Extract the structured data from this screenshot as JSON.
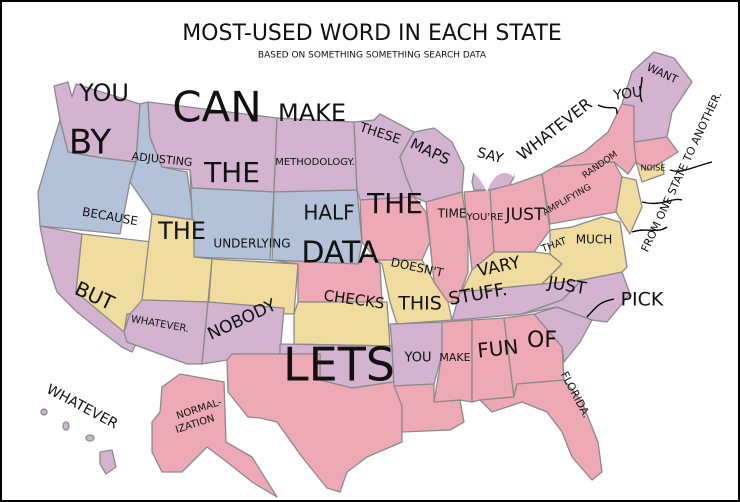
{
  "title": "MOST-USED WORD IN EACH STATE",
  "subtitle": "BASED ON SOMETHING SOMETHING SEARCH DATA",
  "colors": {
    "purple": "#d4b3d1",
    "blue": "#b3c1d9",
    "yellow": "#f1dca0",
    "pink": "#eea9b6",
    "border": "#8a8a8a"
  },
  "words": [
    {
      "state": "Washington",
      "word": "YOU"
    },
    {
      "state": "Oregon",
      "word": "BY"
    },
    {
      "state": "Idaho",
      "word": "ADJUSTING"
    },
    {
      "state": "Montana",
      "word": "CAN"
    },
    {
      "state": "Wyoming",
      "word": "THE"
    },
    {
      "state": "North Dakota",
      "word": "MAKE"
    },
    {
      "state": "South Dakota",
      "word": "METHODOLOGY."
    },
    {
      "state": "Minnesota",
      "word": "THESE"
    },
    {
      "state": "Wisconsin",
      "word": "MAPS"
    },
    {
      "state": "Michigan",
      "word": "SAY"
    },
    {
      "state": "Nevada",
      "word": "BECAUSE"
    },
    {
      "state": "Utah",
      "word": "THE"
    },
    {
      "state": "Colorado",
      "word": "UNDERLYING"
    },
    {
      "state": "Nebraska",
      "word": "HALF"
    },
    {
      "state": "Iowa",
      "word": "THE"
    },
    {
      "state": "Illinois",
      "word": "TIME"
    },
    {
      "state": "Indiana",
      "word": "YOU'RE"
    },
    {
      "state": "Ohio",
      "word": "JUST"
    },
    {
      "state": "Pennsylvania",
      "word": "AMPLIFYING"
    },
    {
      "state": "New York",
      "word": "RANDOM"
    },
    {
      "state": "Massachusetts",
      "word": "NOISE"
    },
    {
      "state": "Kansas",
      "word": "DATA"
    },
    {
      "state": "Missouri",
      "word": "DOESN'T"
    },
    {
      "state": "Kentucky",
      "word": "VARY"
    },
    {
      "state": "West Virginia",
      "word": "THAT"
    },
    {
      "state": "Virginia",
      "word": "MUCH"
    },
    {
      "state": "California",
      "word": "BUT"
    },
    {
      "state": "Arizona",
      "word": "WHATEVER."
    },
    {
      "state": "New Mexico",
      "word": "NOBODY"
    },
    {
      "state": "Oklahoma",
      "word": "CHECKS"
    },
    {
      "state": "Arkansas",
      "word": "THIS"
    },
    {
      "state": "Tennessee",
      "word": "STUFF."
    },
    {
      "state": "North Carolina",
      "word": "JUST"
    },
    {
      "state": "South Carolina",
      "word": "PICK"
    },
    {
      "state": "Texas",
      "word": "LETS"
    },
    {
      "state": "Louisiana",
      "word": "YOU"
    },
    {
      "state": "Mississippi",
      "word": "MAKE"
    },
    {
      "state": "Alabama",
      "word": "FUN"
    },
    {
      "state": "Georgia",
      "word": "OF"
    },
    {
      "state": "Florida",
      "word": "FLORIDA."
    },
    {
      "state": "Alaska",
      "word": "NORMAL-"
    },
    {
      "state": "Alaska",
      "word": "IZATION"
    },
    {
      "state": "Hawaii",
      "word": "WHATEVER"
    },
    {
      "state": "Great Lakes",
      "word": "WHATEVER"
    },
    {
      "state": "Vermont/New Hampshire",
      "word": "YOU"
    },
    {
      "state": "Maine",
      "word": "WANT"
    },
    {
      "state": "Mid-Atlantic",
      "word": "FROM ONE STATE TO ANOTHER."
    }
  ]
}
